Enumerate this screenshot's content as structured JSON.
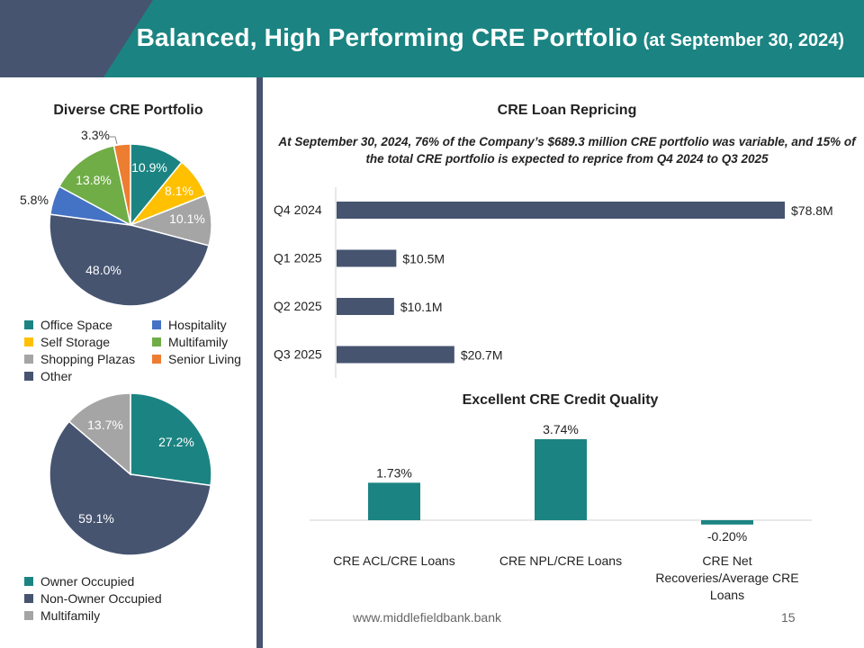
{
  "header": {
    "title": "Balanced, High Performing CRE Portfolio",
    "subtitle": "(at September 30, 2024)",
    "colors": {
      "teal": "#1b8482",
      "slate": "#465470"
    }
  },
  "footer": {
    "url": "www.middlefieldbank.bank",
    "page": "15"
  },
  "repricing_note": "At September 30, 2024, 76% of the Company’s $689.3 million CRE portfolio was variable, and 15% of the total CRE portfolio is expected to reprice from Q4 2024 to Q3 2025",
  "chart_data": [
    {
      "id": "diverse",
      "type": "pie",
      "title": "Diverse CRE Portfolio",
      "categories": [
        "Office Space",
        "Self Storage",
        "Shopping Plazas",
        "Other",
        "Hospitality",
        "Multifamily",
        "Senior Living"
      ],
      "values": [
        10.9,
        8.1,
        10.1,
        48.0,
        5.8,
        13.8,
        3.3
      ],
      "labels": [
        "10.9%",
        "8.1%",
        "10.1%",
        "48.0%",
        "5.8%",
        "13.8%",
        "3.3%"
      ],
      "colors": [
        "#1b8482",
        "#ffc000",
        "#a5a5a5",
        "#465470",
        "#4472c4",
        "#70ad47",
        "#ed7d31"
      ],
      "legend": [
        "Office Space",
        "Hospitality",
        "Self Storage",
        "Multifamily",
        "Shopping Plazas",
        "Senior Living",
        "Other"
      ],
      "legend_colors": [
        "#1b8482",
        "#4472c4",
        "#ffc000",
        "#70ad47",
        "#a5a5a5",
        "#ed7d31",
        "#465470"
      ]
    },
    {
      "id": "occupancy",
      "type": "pie",
      "title": "",
      "categories": [
        "Owner Occupied",
        "Non-Owner Occupied",
        "Multifamily"
      ],
      "values": [
        27.2,
        59.1,
        13.7
      ],
      "labels": [
        "27.2%",
        "59.1%",
        "13.7%"
      ],
      "colors": [
        "#1b8482",
        "#465470",
        "#a5a5a5"
      ],
      "legend": [
        "Owner Occupied",
        "Non-Owner Occupied",
        "Multifamily"
      ]
    },
    {
      "id": "repricing",
      "type": "bar",
      "orientation": "horizontal",
      "title": "CRE Loan Repricing",
      "categories": [
        "Q4 2024",
        "Q1 2025",
        "Q2 2025",
        "Q3 2025"
      ],
      "values": [
        78.8,
        10.5,
        10.1,
        20.7
      ],
      "labels": [
        "$78.8M",
        "$10.5M",
        "$10.1M",
        "$20.7M"
      ],
      "color": "#465470"
    },
    {
      "id": "credit",
      "type": "bar",
      "title": "Excellent CRE Credit Quality",
      "categories": [
        "CRE ACL/CRE Loans",
        "CRE NPL/CRE Loans",
        "CRE Net Recoveries/Average CRE Loans"
      ],
      "values": [
        1.73,
        3.74,
        -0.2
      ],
      "labels": [
        "1.73%",
        "3.74%",
        "-0.20%"
      ],
      "color": "#1b8482"
    }
  ]
}
